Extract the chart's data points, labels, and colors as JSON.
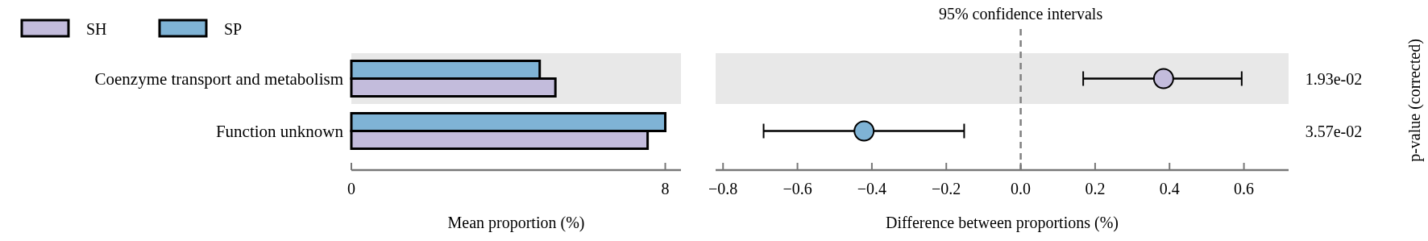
{
  "chart_data": [
    {
      "type": "bar",
      "orientation": "horizontal",
      "xlabel": "Mean proportion (%)",
      "categories": [
        "Coenzyme transport and metabolism",
        "Function unknown"
      ],
      "series": [
        {
          "name": "SH",
          "color": "#c3bcdc",
          "values": [
            5.2,
            7.55
          ]
        },
        {
          "name": "SP",
          "color": "#7fb3d5",
          "values": [
            4.8,
            8.0
          ]
        }
      ],
      "xlim": [
        0,
        8.4
      ],
      "xticks": [
        0,
        8
      ],
      "legend": "top left",
      "bands": [
        {
          "axis": "y",
          "from": "Coenzyme transport and metabolism",
          "to": "Coenzyme transport and metabolism",
          "color": "#e8e8e8"
        }
      ]
    },
    {
      "type": "scatter",
      "orientation": "horizontal",
      "title": "95% confidence intervals",
      "xlabel": "Difference between proportions (%)",
      "y2label": "p-value (corrected)",
      "categories": [
        "Coenzyme transport and metabolism",
        "Function unknown"
      ],
      "values": [
        0.384,
        -0.421
      ],
      "colors": [
        "#c3bcdc",
        "#7fb3d5"
      ],
      "errors": [
        [
          0.168,
          0.594
        ],
        [
          -0.691,
          -0.152
        ]
      ],
      "xlim": [
        -0.82,
        0.72
      ],
      "xticks": [
        {
          "value": -0.8,
          "label": "−0.8"
        },
        {
          "value": -0.6,
          "label": "−0.6"
        },
        {
          "value": -0.4,
          "label": "−0.4"
        },
        {
          "value": -0.2,
          "label": "−0.2"
        },
        {
          "value": 0,
          "label": "0.0"
        },
        {
          "value": 0.2,
          "label": "0.2"
        },
        {
          "value": 0.4,
          "label": "0.4"
        },
        {
          "value": 0.6,
          "label": "0.6"
        }
      ],
      "tick_labels": "x",
      "marker": "circle",
      "ref_lines": [
        {
          "axis": "x",
          "value": 0,
          "color": "#808080",
          "line_style": "dashed"
        }
      ],
      "annotations": [
        "1.93e-02",
        "3.57e-02"
      ],
      "bands": [
        {
          "axis": "y",
          "from": "Coenzyme transport and metabolism",
          "to": "Coenzyme transport and metabolism",
          "color": "#e8e8e8"
        }
      ]
    }
  ]
}
